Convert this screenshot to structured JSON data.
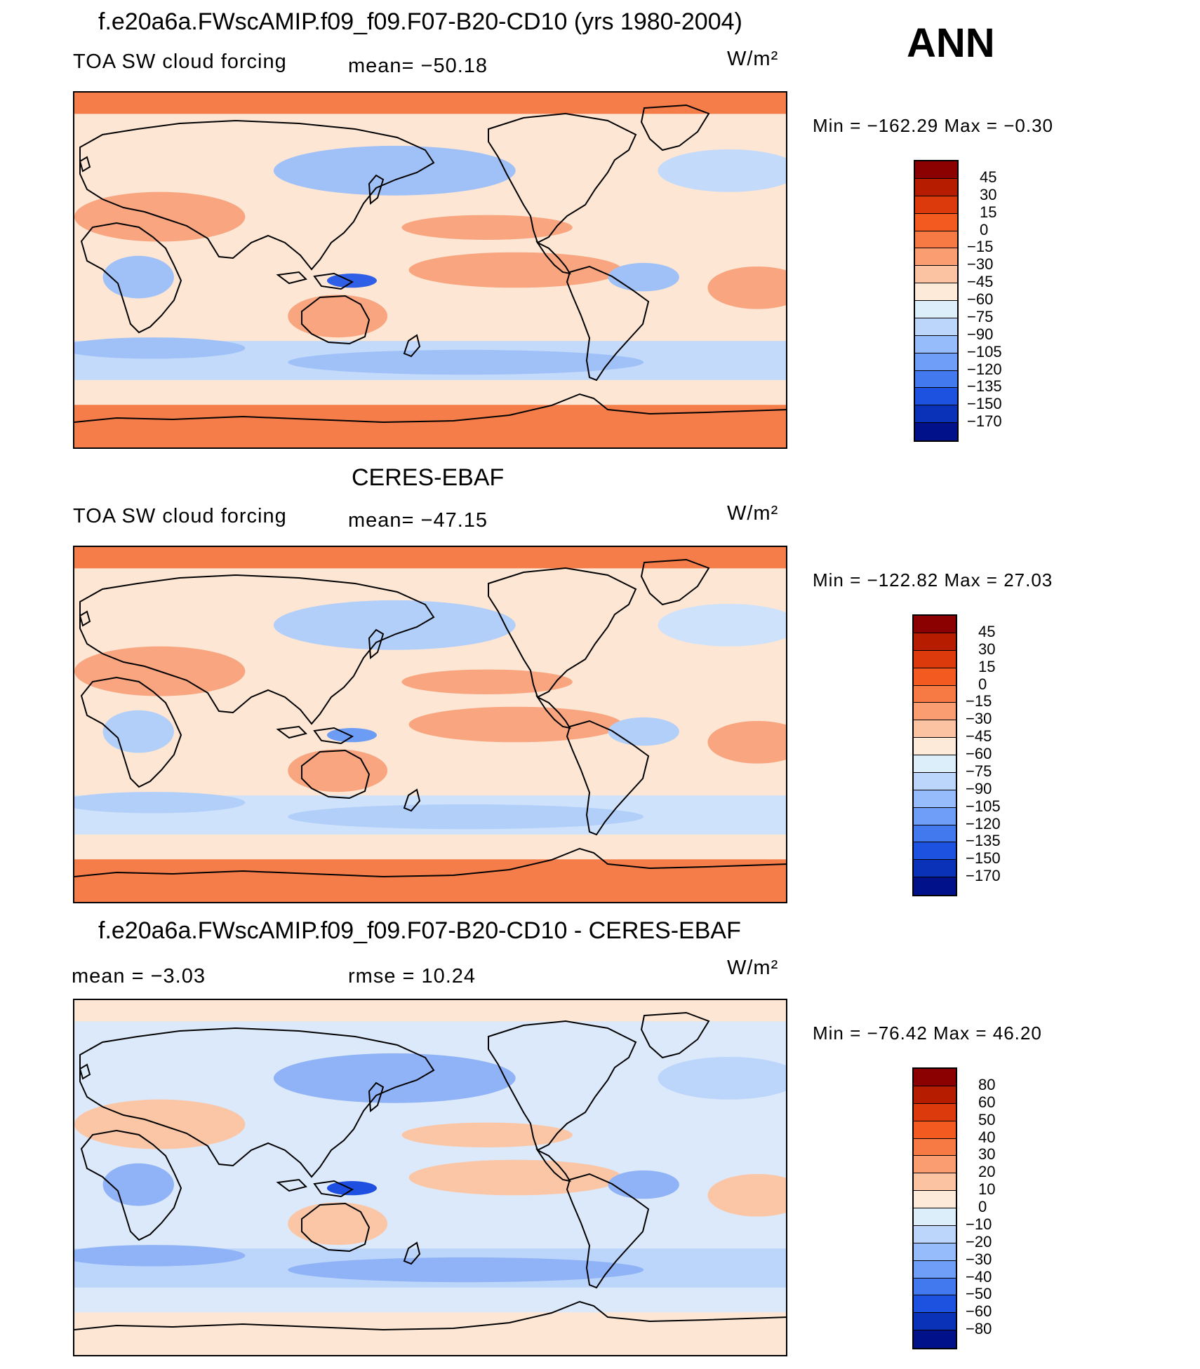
{
  "season": "ANN",
  "units": "W/m²",
  "panels": [
    {
      "title": "f.e20a6a.FWscAMIP.f09_f09.F07-B20-CD10 (yrs 1980-2004)",
      "variable": "TOA SW cloud forcing",
      "mean_text": "mean= −50.18",
      "rmse_text": "",
      "min_max": "Min  =  −162.29  Max  =    −0.30",
      "colorbar_labels": [
        "45",
        "30",
        "15",
        "0",
        "−15",
        "−30",
        "−45",
        "−60",
        "−75",
        "−90",
        "−105",
        "−120",
        "−135",
        "−150",
        "−170"
      ],
      "colorbar_colors": [
        "#8b0000",
        "#b51c00",
        "#dc3a0c",
        "#f25a20",
        "#f77a45",
        "#fa9d70",
        "#fcc3a3",
        "#feead8",
        "#dceefa",
        "#bcd6fb",
        "#97bcfb",
        "#6f9ef8",
        "#4279ef",
        "#1d52e0",
        "#0a32b8",
        "#00118a"
      ],
      "map_colors": {
        "base": "#fde6d3",
        "polar": "#f47d4a",
        "warm": "#f8a580",
        "cool": "#c3dafa",
        "cool2": "#9fc1f8",
        "deep": "#2e5fe6"
      }
    },
    {
      "title": "CERES-EBAF",
      "variable": "TOA SW cloud forcing",
      "mean_text": "mean= −47.15",
      "rmse_text": "",
      "min_max": "Min  =  −122.82  Max  =    27.03",
      "colorbar_labels": [
        "45",
        "30",
        "15",
        "0",
        "−15",
        "−30",
        "−45",
        "−60",
        "−75",
        "−90",
        "−105",
        "−120",
        "−135",
        "−150",
        "−170"
      ],
      "colorbar_colors": [
        "#8b0000",
        "#b51c00",
        "#dc3a0c",
        "#f25a20",
        "#f77a45",
        "#fa9d70",
        "#fcc3a3",
        "#feead8",
        "#dceefa",
        "#bcd6fb",
        "#97bcfb",
        "#6f9ef8",
        "#4279ef",
        "#1d52e0",
        "#0a32b8",
        "#00118a"
      ],
      "map_colors": {
        "base": "#fde6d3",
        "polar": "#f47d4a",
        "warm": "#f8a580",
        "cool": "#cfe2fb",
        "cool2": "#b2cff9",
        "deep": "#6c9cf4"
      }
    },
    {
      "title": "f.e20a6a.FWscAMIP.f09_f09.F07-B20-CD10 - CERES-EBAF",
      "variable": "",
      "mean_text": "mean  =    −3.03",
      "rmse_text": "rmse  =    10.24",
      "min_max": "Min  =  −76.42  Max  =    46.20",
      "colorbar_labels": [
        "80",
        "60",
        "50",
        "40",
        "30",
        "20",
        "10",
        "0",
        "−10",
        "−20",
        "−30",
        "−40",
        "−50",
        "−60",
        "−80"
      ],
      "colorbar_colors": [
        "#8b0000",
        "#b51c00",
        "#dc3a0c",
        "#f25a20",
        "#f77a45",
        "#fa9d70",
        "#fcc3a3",
        "#feead8",
        "#dceefa",
        "#bcd6fb",
        "#97bcfb",
        "#6f9ef8",
        "#4279ef",
        "#1d52e0",
        "#0a32b8",
        "#00118a"
      ],
      "map_colors": {
        "base": "#dbe9fb",
        "polar": "#fde6d3",
        "warm": "#fbc6a6",
        "cool": "#bcd5fa",
        "cool2": "#8fb3f6",
        "deep": "#1f4fe0"
      }
    }
  ]
}
